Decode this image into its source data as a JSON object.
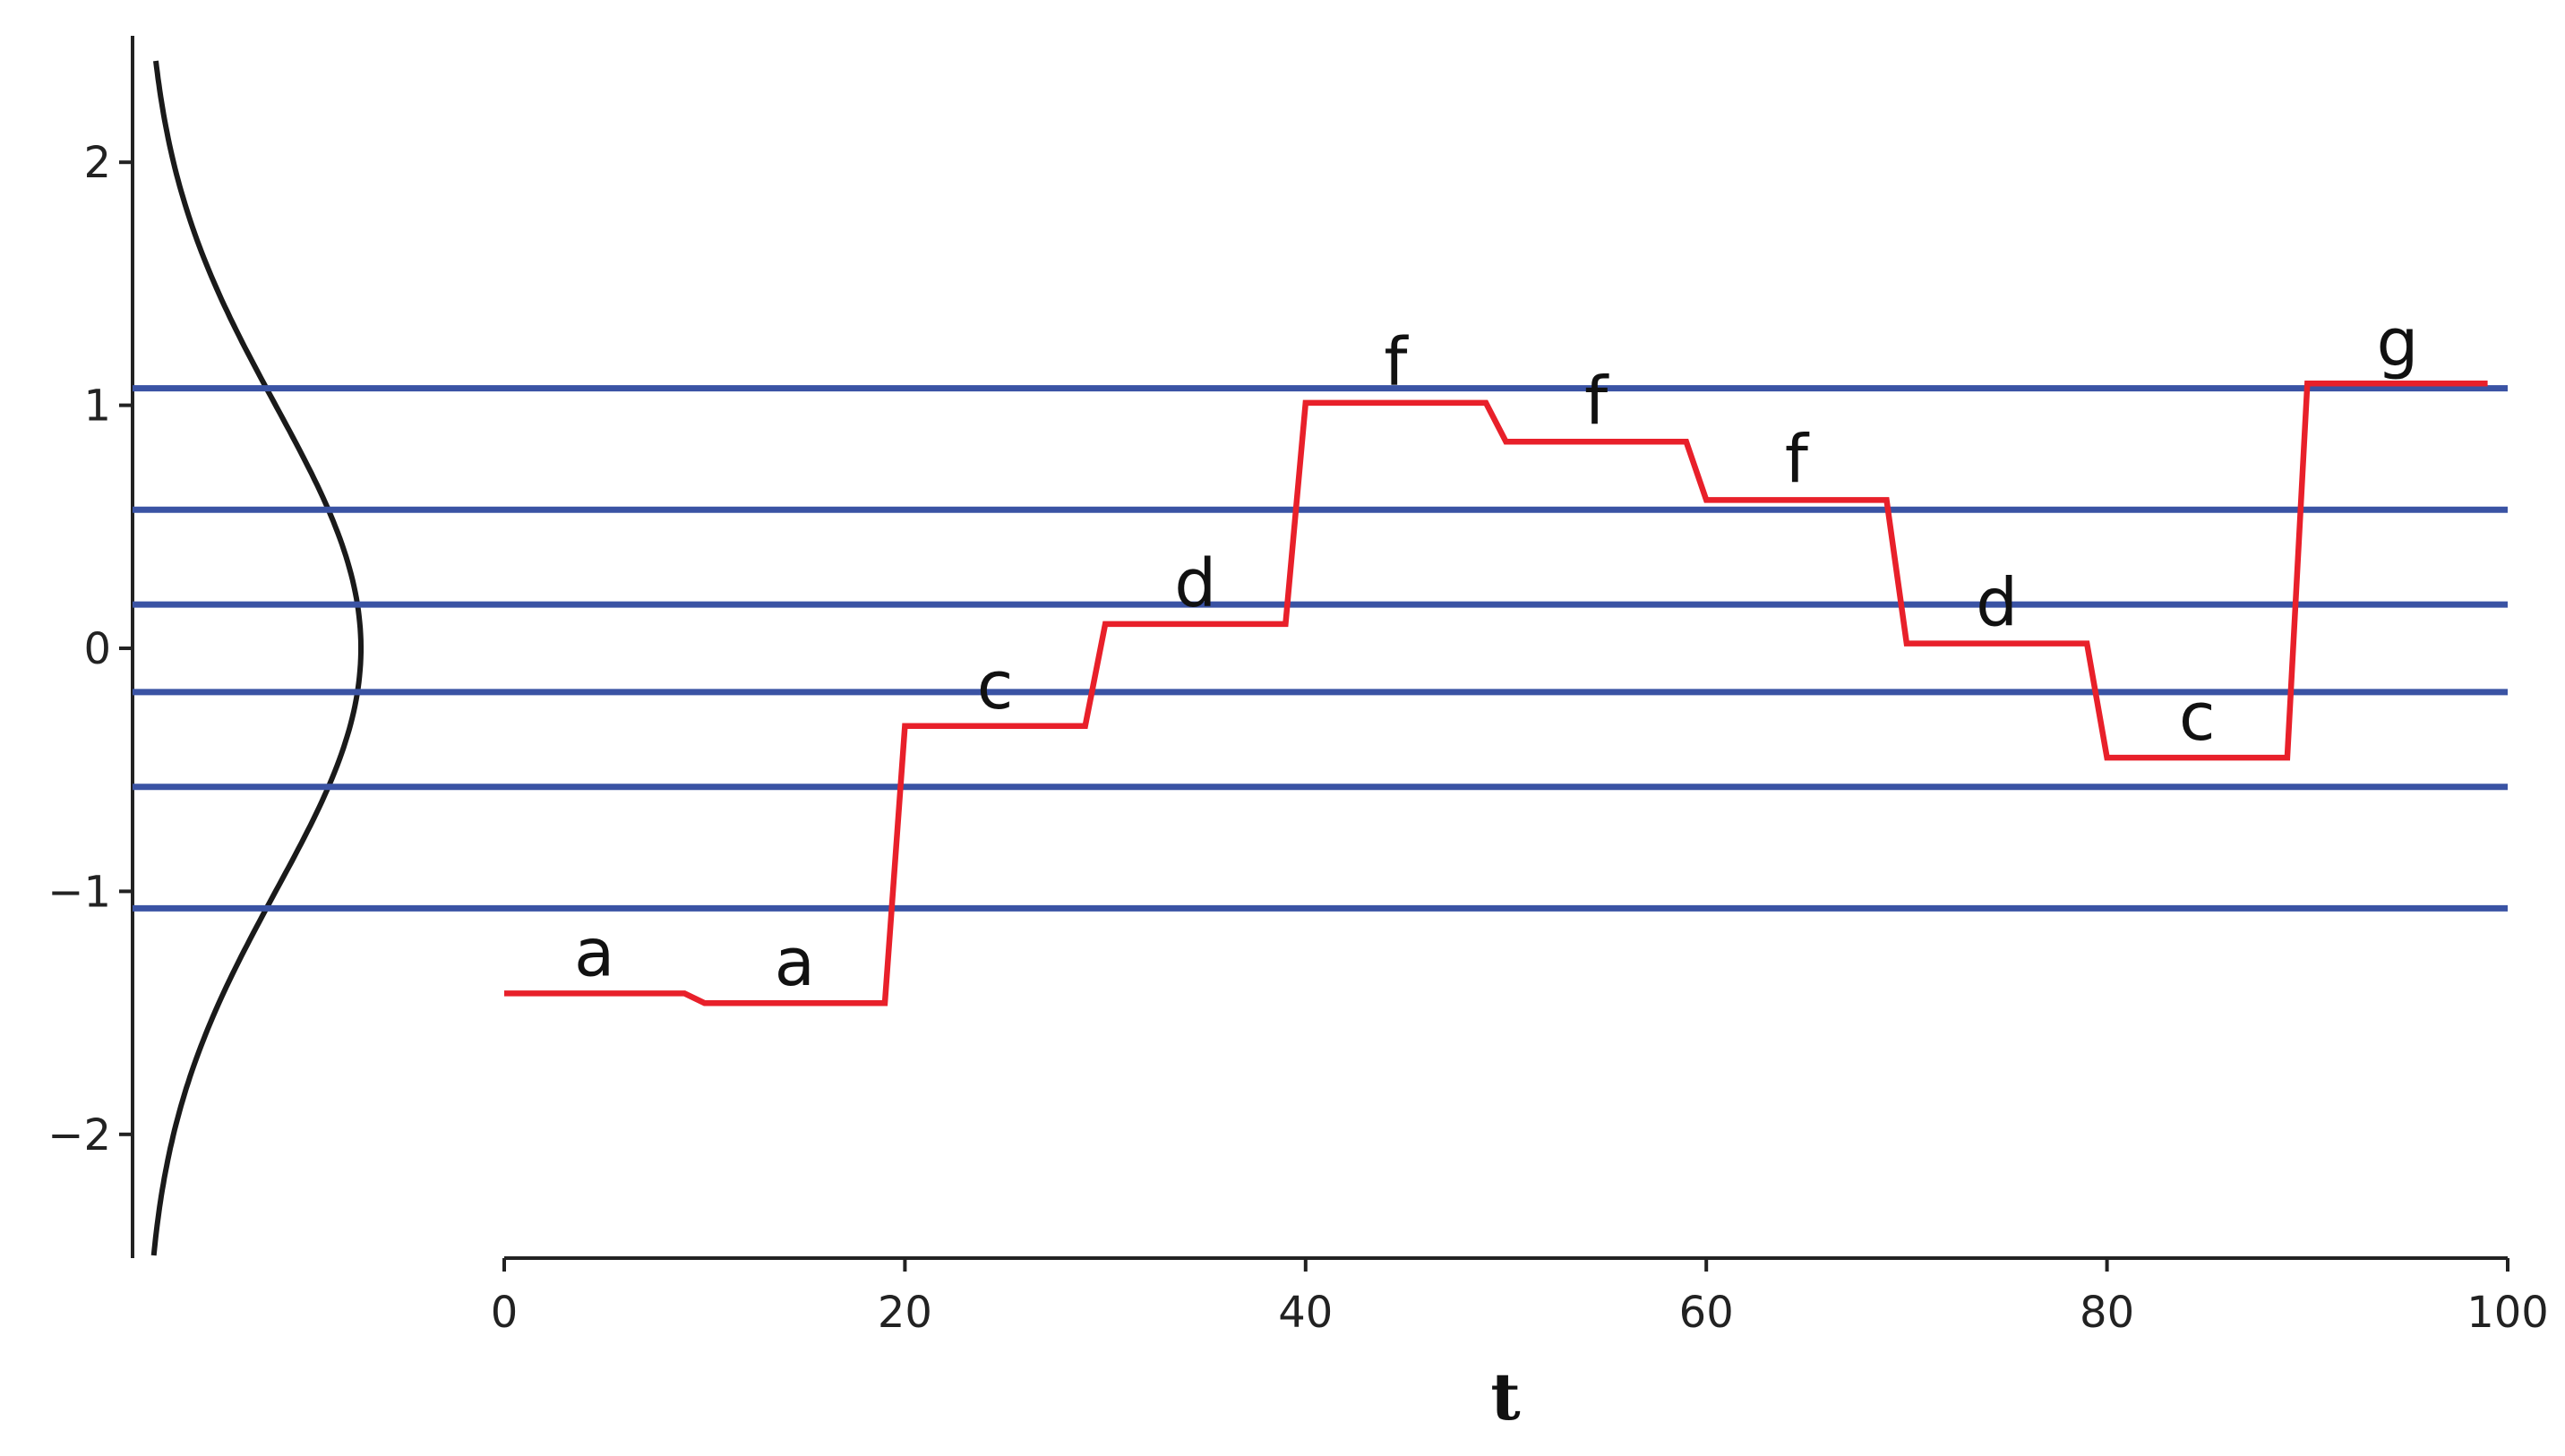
{
  "chart_data": {
    "type": "line",
    "xlabel": "t",
    "xlim": [
      0,
      100
    ],
    "xticks": [
      0,
      20,
      40,
      60,
      80,
      100
    ],
    "ylim": [
      -2.5,
      2.5
    ],
    "yticks": [
      {
        "value": -2,
        "label": "−2"
      },
      {
        "value": -1,
        "label": "−1"
      },
      0,
      1,
      2
    ],
    "series": [
      {
        "color": "#e8202a",
        "x": [
          0,
          9,
          10,
          19,
          20,
          29,
          30,
          39,
          40,
          49,
          50,
          59,
          60,
          69,
          70,
          79,
          80,
          89,
          90,
          99
        ],
        "values": [
          -1.42,
          -1.42,
          -1.46,
          -1.46,
          -0.32,
          -0.32,
          0.1,
          0.1,
          1.01,
          1.01,
          0.85,
          0.85,
          0.61,
          0.61,
          0.02,
          0.02,
          -0.45,
          -0.45,
          1.09,
          1.09
        ],
        "symbols": [
          "a",
          "a",
          "c",
          "d",
          "f",
          "f",
          "f",
          "d",
          "c",
          "g"
        ]
      }
    ],
    "hlines": [
      -1.07,
      -0.57,
      -0.18,
      0.18,
      0.57,
      1.07
    ],
    "hline_color": "#3a53a4"
  }
}
